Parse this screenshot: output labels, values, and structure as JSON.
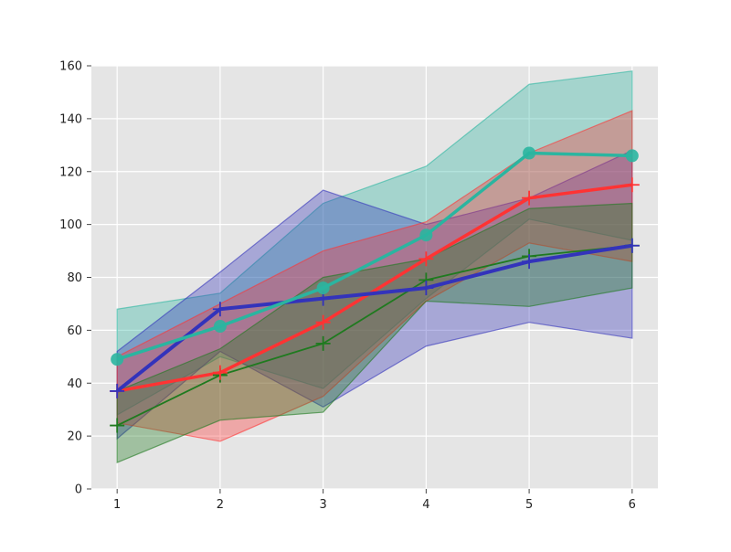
{
  "chart_data": {
    "type": "line",
    "x": [
      1,
      2,
      3,
      4,
      5,
      6
    ],
    "xlim": [
      0.75,
      6.25
    ],
    "ylim": [
      0,
      160
    ],
    "xticks": [
      1,
      2,
      3,
      4,
      5,
      6
    ],
    "yticks": [
      0,
      20,
      40,
      60,
      80,
      100,
      120,
      140,
      160
    ],
    "grid": true,
    "background": "#e5e5e5",
    "series": [
      {
        "color": "#2ab5a0",
        "marker": "circle",
        "values": [
          49,
          61.5,
          76,
          96,
          127,
          126
        ],
        "band_upper": [
          68,
          74,
          108,
          122,
          153,
          158
        ],
        "band_lower": [
          28,
          50,
          38,
          72,
          102,
          94
        ]
      },
      {
        "color": "#3333bb",
        "marker": "plus",
        "values": [
          37,
          68,
          72,
          76,
          86,
          92
        ],
        "band_upper": [
          52,
          82,
          113,
          100,
          110,
          128
        ],
        "band_lower": [
          19,
          52,
          31,
          54,
          63,
          57
        ]
      },
      {
        "color": "#ff3333",
        "marker": "plus",
        "values": [
          37,
          44,
          63,
          87,
          110,
          115
        ],
        "band_upper": [
          50,
          70,
          90,
          101,
          127,
          143
        ],
        "band_lower": [
          25,
          18,
          35,
          71,
          93,
          86
        ]
      },
      {
        "color": "#1f7a1f",
        "marker": "plus",
        "values": [
          24,
          43,
          55,
          79,
          88,
          92
        ],
        "band_upper": [
          37,
          53,
          80,
          87,
          106,
          108
        ],
        "band_lower": [
          10,
          26,
          29,
          71,
          69,
          76
        ]
      }
    ]
  }
}
